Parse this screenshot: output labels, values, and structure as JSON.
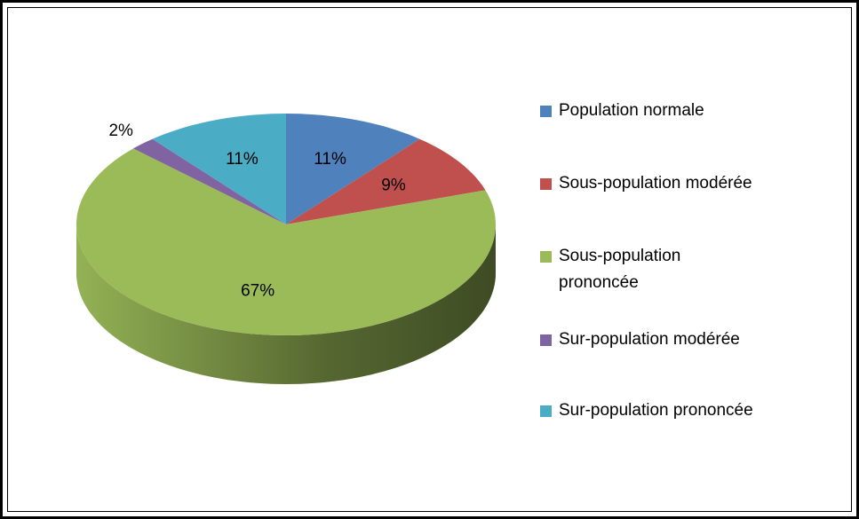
{
  "chart_data": {
    "type": "pie",
    "categories": [
      "Population normale",
      "Sous-population modérée",
      "Sous-population prononcée",
      "Sur-population modérée",
      "Sur-population prononcée"
    ],
    "values": [
      11,
      9,
      67,
      2,
      11
    ],
    "value_labels": [
      "11%",
      "9%",
      "67%",
      "2%",
      "11%"
    ],
    "colors": [
      "#4f81bd",
      "#c0504d",
      "#9bbb59",
      "#8064a2",
      "#4bacc6"
    ],
    "legend": "right"
  }
}
